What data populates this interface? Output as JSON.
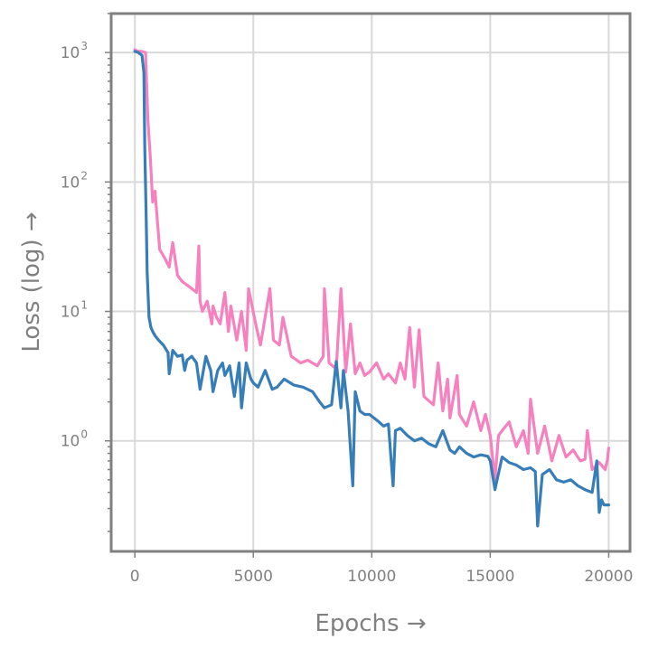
{
  "chart_data": {
    "type": "line",
    "xlabel": "Epochs →",
    "ylabel": "Loss (log) →",
    "xlim": [
      -1000,
      20900
    ],
    "ylim": [
      0.14,
      2000
    ],
    "yscale": "log",
    "grid": true,
    "legend": "none",
    "x_ticks": [
      0,
      5000,
      10000,
      15000,
      20000
    ],
    "x_tick_labels": [
      "0",
      "5000",
      "10000",
      "15000",
      "20000"
    ],
    "y_ticks": [
      1,
      10,
      100,
      1000
    ],
    "y_tick_labels": [
      "10^0",
      "10^1",
      "10^2",
      "10^3"
    ],
    "series": [
      {
        "color": "#f781bf",
        "x": [
          0,
          150,
          300,
          450,
          550,
          650,
          750,
          850,
          950,
          1050,
          1150,
          1300,
          1450,
          1600,
          1800,
          2000,
          2200,
          2400,
          2600,
          2700,
          2750,
          2850,
          3050,
          3250,
          3300,
          3450,
          3600,
          3800,
          3950,
          4050,
          4300,
          4500,
          4700,
          4800,
          5100,
          5300,
          5400,
          5700,
          5850,
          6100,
          6250,
          6600,
          7000,
          7300,
          7700,
          7950,
          8000,
          8200,
          8500,
          8700,
          8900,
          9100,
          9300,
          9500,
          9700,
          9900,
          10200,
          10500,
          10700,
          11000,
          11200,
          11400,
          11600,
          11800,
          12000,
          12200,
          12600,
          12800,
          13000,
          13200,
          13300,
          13600,
          13700,
          14000,
          14300,
          14600,
          14800,
          15000,
          15200,
          15350,
          15500,
          15800,
          16100,
          16400,
          16600,
          16700,
          17000,
          17300,
          17600,
          17900,
          18200,
          18500,
          18800,
          19000,
          19100,
          19300,
          19600,
          19850,
          19950,
          20000
        ],
        "y": [
          1050,
          1020,
          1020,
          1000,
          300,
          160,
          70,
          85,
          50,
          30,
          28,
          25,
          22,
          34,
          19,
          17,
          16,
          15,
          14,
          32,
          12,
          10,
          12,
          8,
          11,
          9,
          8,
          14,
          7,
          11,
          6,
          10,
          5,
          15,
          8,
          5.5,
          7,
          15,
          6,
          5.5,
          9,
          4.5,
          4,
          4.2,
          3.8,
          4.5,
          15,
          4,
          3.6,
          15,
          3.4,
          8,
          3.3,
          4,
          3.2,
          3.4,
          4,
          3,
          3.3,
          2.8,
          4,
          3,
          7.5,
          2.6,
          7.2,
          2.2,
          1.9,
          4,
          1.7,
          3,
          1.5,
          3.2,
          1.6,
          1.3,
          2,
          1.2,
          1.6,
          1.1,
          0.5,
          1.1,
          1.2,
          1.4,
          0.9,
          1.2,
          0.8,
          2.1,
          0.8,
          1.3,
          0.7,
          1.1,
          0.75,
          0.85,
          0.7,
          0.72,
          1.2,
          0.6,
          0.68,
          0.6,
          0.72,
          0.88
        ]
      },
      {
        "color": "#377eb8",
        "x": [
          0,
          150,
          300,
          380,
          420,
          480,
          520,
          600,
          680,
          750,
          850,
          1000,
          1200,
          1400,
          1450,
          1600,
          1800,
          2000,
          2100,
          2200,
          2400,
          2600,
          2750,
          3000,
          3200,
          3300,
          3500,
          3700,
          3800,
          4000,
          4200,
          4400,
          4500,
          4700,
          4900,
          5000,
          5200,
          5500,
          5800,
          6000,
          6300,
          6700,
          7100,
          7500,
          7800,
          8000,
          8300,
          8500,
          8700,
          8800,
          9000,
          9200,
          9300,
          9500,
          9700,
          9900,
          10100,
          10300,
          10500,
          10700,
          10900,
          11000,
          11200,
          11500,
          11800,
          12100,
          12400,
          12700,
          13000,
          13300,
          13500,
          13700,
          14000,
          14300,
          14600,
          14900,
          15000,
          15200,
          15500,
          15800,
          16100,
          16400,
          16700,
          16900,
          17000,
          17200,
          17500,
          17800,
          18100,
          18400,
          18700,
          19000,
          19300,
          19500,
          19600,
          19700,
          19800,
          20000
        ],
        "y": [
          1020,
          1000,
          950,
          700,
          180,
          50,
          20,
          9,
          7.5,
          7,
          6.5,
          6,
          5.5,
          4.8,
          3.3,
          5,
          4.5,
          4.6,
          3.5,
          4.2,
          4.5,
          4,
          2.5,
          4.5,
          3.5,
          2.4,
          3.5,
          4,
          3.2,
          3.8,
          2.2,
          4,
          1.8,
          4,
          3,
          2.8,
          2.6,
          3.5,
          2.5,
          2.6,
          3,
          2.7,
          2.6,
          2.4,
          2,
          1.8,
          1.9,
          4.1,
          1.8,
          3.5,
          1.7,
          0.45,
          2.4,
          1.7,
          1.6,
          1.6,
          1.5,
          1.4,
          1.3,
          1.35,
          0.45,
          1.2,
          1.25,
          1.1,
          1.0,
          1.05,
          0.95,
          0.9,
          1.2,
          0.85,
          0.8,
          0.9,
          0.8,
          0.75,
          0.78,
          0.76,
          0.7,
          0.42,
          0.75,
          0.68,
          0.65,
          0.6,
          0.62,
          0.58,
          0.22,
          0.55,
          0.6,
          0.5,
          0.48,
          0.5,
          0.45,
          0.42,
          0.4,
          0.7,
          0.28,
          0.35,
          0.32,
          0.32
        ]
      }
    ]
  }
}
